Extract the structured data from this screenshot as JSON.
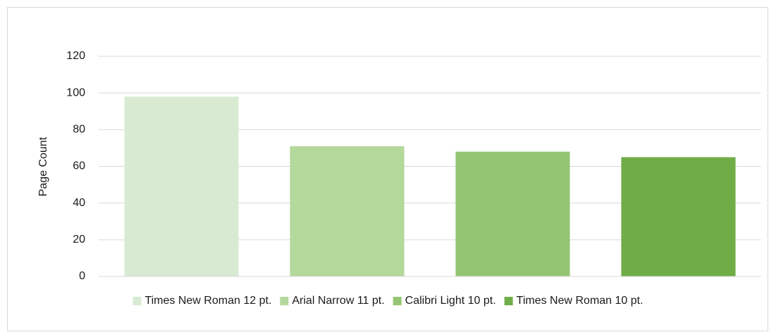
{
  "chart_data": {
    "type": "bar",
    "y_label": "Page Count",
    "categories": [
      null
    ],
    "series": [
      {
        "name": "Times New Roman 12 pt.",
        "color": "#d9ead3",
        "values": [
          98
        ]
      },
      {
        "name": "Arial Narrow 11 pt.",
        "color": "#b5d89c",
        "values": [
          71
        ]
      },
      {
        "name": "Calibri Light 10 pt.",
        "color": "#93c572",
        "values": [
          68
        ]
      },
      {
        "name": "Times New Roman 10 pt.",
        "color": "#70ad47",
        "values": [
          65
        ]
      }
    ],
    "ylim": [
      0,
      120
    ],
    "yticks": [
      0,
      20,
      40,
      60,
      80,
      100,
      120
    ],
    "grid": true,
    "legend": "bottom"
  }
}
